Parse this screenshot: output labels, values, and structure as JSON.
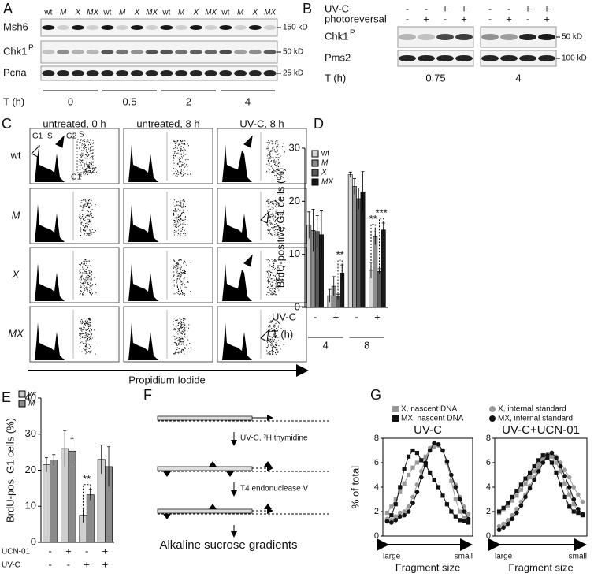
{
  "panels": {
    "A": {
      "label": "A",
      "lanes": [
        "wt",
        "M",
        "X",
        "MX"
      ],
      "rows": [
        {
          "name": "Msh6",
          "marker": "150 kD"
        },
        {
          "name": "Chk1",
          "sup": "P",
          "marker": "50 kD"
        },
        {
          "name": "Pcna",
          "marker": "25 kD"
        }
      ],
      "time_label": "T (h)",
      "times": [
        "0",
        "0.5",
        "2",
        "4"
      ]
    },
    "B": {
      "label": "B",
      "conditions": [
        {
          "name": "UV-C",
          "signs": [
            "-",
            "-",
            "+",
            "+"
          ]
        },
        {
          "name": "photoreversal",
          "signs": [
            "-",
            "+",
            "-",
            "+"
          ]
        }
      ],
      "rows": [
        {
          "name": "Chk1",
          "sup": "P",
          "marker": "50 kD"
        },
        {
          "name": "Pms2",
          "marker": "100 kD"
        }
      ],
      "time_label": "T (h)",
      "times": [
        "0.75",
        "4"
      ]
    },
    "C": {
      "label": "C",
      "columns": [
        "untreated, 0 h",
        "untreated, 8 h",
        "UV-C, 8 h"
      ],
      "rows": [
        "wt",
        "M",
        "X",
        "MX"
      ],
      "gates": [
        "G1",
        "S",
        "G2",
        "S",
        "G1",
        "G2"
      ],
      "x_label": "Propidium Iodide"
    },
    "F": {
      "label": "F",
      "steps": [
        "UV-C, ³H thymidine",
        "T4 endonuclease V"
      ],
      "result": "Alkaline sucrose gradients"
    }
  },
  "chart_data": [
    {
      "type": "bar",
      "panel": "D",
      "ylabel": "BrdU-positive G1 cells (%)",
      "category_label": "UV-C",
      "categories": [
        "-",
        "+",
        "-",
        "+"
      ],
      "group_label": "T (h)",
      "groups": [
        "4",
        "8"
      ],
      "ylim": [
        0,
        30
      ],
      "yticks": [
        0,
        10,
        20,
        30
      ],
      "series": [
        {
          "name": "wt",
          "color": "#d4d4d4",
          "values": [
            15.5,
            2.2,
            25,
            7
          ],
          "errors": [
            2.5,
            1.2,
            0.5,
            1.5
          ]
        },
        {
          "name": "M",
          "color": "#8e8e8e",
          "values": [
            14.5,
            4,
            22.8,
            13.3
          ],
          "errors": [
            4,
            1.8,
            1.5,
            1.5
          ]
        },
        {
          "name": "X",
          "color": "#5a5a5a",
          "values": [
            14.3,
            2,
            20.5,
            6.8
          ],
          "errors": [
            3,
            0.5,
            2,
            0.5
          ]
        },
        {
          "name": "MX",
          "color": "#1a1a1a",
          "values": [
            13.7,
            6.5,
            21.8,
            14.6
          ],
          "errors": [
            4.5,
            1.5,
            3.8,
            1.3
          ]
        }
      ],
      "annotations": [
        "**",
        "**",
        "***"
      ]
    },
    {
      "type": "bar",
      "panel": "E",
      "ylabel": "BrdU-pos. G1 cells (%)",
      "ylim": [
        0,
        40
      ],
      "yticks": [
        0,
        10,
        20,
        30,
        40
      ],
      "conditions": [
        {
          "name": "UCN-01",
          "signs": [
            "-",
            "+",
            "-",
            "+"
          ]
        },
        {
          "name": "UV-C",
          "signs": [
            "-",
            "-",
            "+",
            "+"
          ]
        }
      ],
      "series": [
        {
          "name": "wt",
          "color": "#cfcfcf",
          "values": [
            21.5,
            26,
            7.5,
            23
          ],
          "errors": [
            2,
            5,
            2,
            4
          ]
        },
        {
          "name": "M",
          "color": "#8a8a8a",
          "values": [
            22.8,
            25.3,
            13.2,
            21
          ],
          "errors": [
            1.5,
            3.5,
            1.5,
            5.5
          ]
        }
      ],
      "annotations": [
        "**"
      ]
    },
    {
      "type": "line",
      "panel": "G",
      "title": "UV-C",
      "ylabel": "% of total",
      "xlabel": "Fragment size",
      "x_start": "large",
      "x_end": "small",
      "x": [
        1,
        2,
        3,
        4,
        5,
        6,
        7,
        8,
        9,
        10,
        11,
        12,
        13,
        14,
        15,
        16,
        17,
        18,
        19,
        20
      ],
      "xlim": [
        0,
        21
      ],
      "ylim": [
        0,
        8
      ],
      "yticks": [
        0,
        2,
        4,
        6,
        8
      ],
      "series": [
        {
          "name": "X, nascent DNA",
          "color": "#999999",
          "marker": "square",
          "values": [
            1.9,
            2.4,
            3.0,
            3.6,
            4.3,
            5.0,
            5.6,
            6.0,
            6.2,
            6.5,
            7.0,
            7.3,
            7.5,
            7.0,
            6.0,
            4.5,
            3.0,
            2.0,
            1.5,
            1.2
          ]
        },
        {
          "name": "MX, nascent DNA",
          "color": "#111111",
          "marker": "square",
          "values": [
            1.3,
            1.7,
            2.6,
            4.0,
            5.5,
            6.5,
            7.0,
            6.8,
            6.2,
            5.8,
            5.2,
            4.6,
            4.0,
            3.3,
            2.6,
            2.0,
            1.6,
            1.3,
            1.2,
            1.1
          ]
        },
        {
          "name": "X, internal standard",
          "color": "#999999",
          "marker": "circle",
          "values": [
            1.4,
            1.3,
            1.6,
            1.9,
            2.0,
            2.4,
            3.2,
            4.2,
            5.3,
            6.4,
            7.2,
            7.6,
            7.4,
            7.0,
            6.0,
            5.0,
            4.2,
            3.2,
            2.4,
            1.8
          ]
        },
        {
          "name": "MX, internal standard",
          "color": "#111111",
          "marker": "circle",
          "values": [
            1.2,
            1.1,
            1.3,
            1.6,
            1.7,
            2.0,
            2.7,
            3.6,
            4.8,
            6.0,
            7.0,
            7.6,
            7.5,
            7.0,
            6.1,
            5.0,
            4.0,
            3.0,
            2.0,
            1.4
          ]
        }
      ]
    },
    {
      "type": "line",
      "title": "UV-C+UCN-01",
      "xlabel": "Fragment size",
      "x_start": "large",
      "x_end": "small",
      "x": [
        1,
        2,
        3,
        4,
        5,
        6,
        7,
        8,
        9,
        10,
        11,
        12,
        13,
        14,
        15,
        16,
        17,
        18,
        19,
        20
      ],
      "xlim": [
        0,
        21
      ],
      "ylim": [
        0,
        8
      ],
      "yticks": [
        0,
        2,
        4,
        6,
        8
      ],
      "series": [
        {
          "color": "#999999",
          "marker": "square",
          "values": [
            1.9,
            2.2,
            2.5,
            2.9,
            3.3,
            3.8,
            4.3,
            4.8,
            5.3,
            5.8,
            6.3,
            6.6,
            6.5,
            6.0,
            5.3,
            4.3,
            3.4,
            2.6,
            2.0,
            1.8
          ]
        },
        {
          "color": "#111111",
          "marker": "square",
          "values": [
            2.0,
            2.3,
            2.7,
            3.2,
            3.7,
            4.2,
            4.7,
            5.2,
            5.7,
            6.2,
            6.6,
            6.4,
            6.0,
            5.2,
            4.2,
            3.2,
            2.4,
            2.0,
            1.9,
            1.7
          ]
        },
        {
          "color": "#999999",
          "marker": "circle",
          "values": [
            0.8,
            1.0,
            1.3,
            1.7,
            2.2,
            2.8,
            3.4,
            4.1,
            4.8,
            5.5,
            6.2,
            6.7,
            6.8,
            6.5,
            6.0,
            5.4,
            4.8,
            4.0,
            3.4,
            2.8
          ]
        },
        {
          "color": "#111111",
          "marker": "circle",
          "values": [
            0.5,
            0.7,
            1.0,
            1.4,
            1.9,
            2.5,
            3.2,
            3.9,
            4.6,
            5.3,
            6.0,
            6.6,
            6.8,
            6.4,
            5.7,
            4.9,
            4.0,
            3.0,
            2.2,
            1.8
          ]
        }
      ]
    }
  ]
}
